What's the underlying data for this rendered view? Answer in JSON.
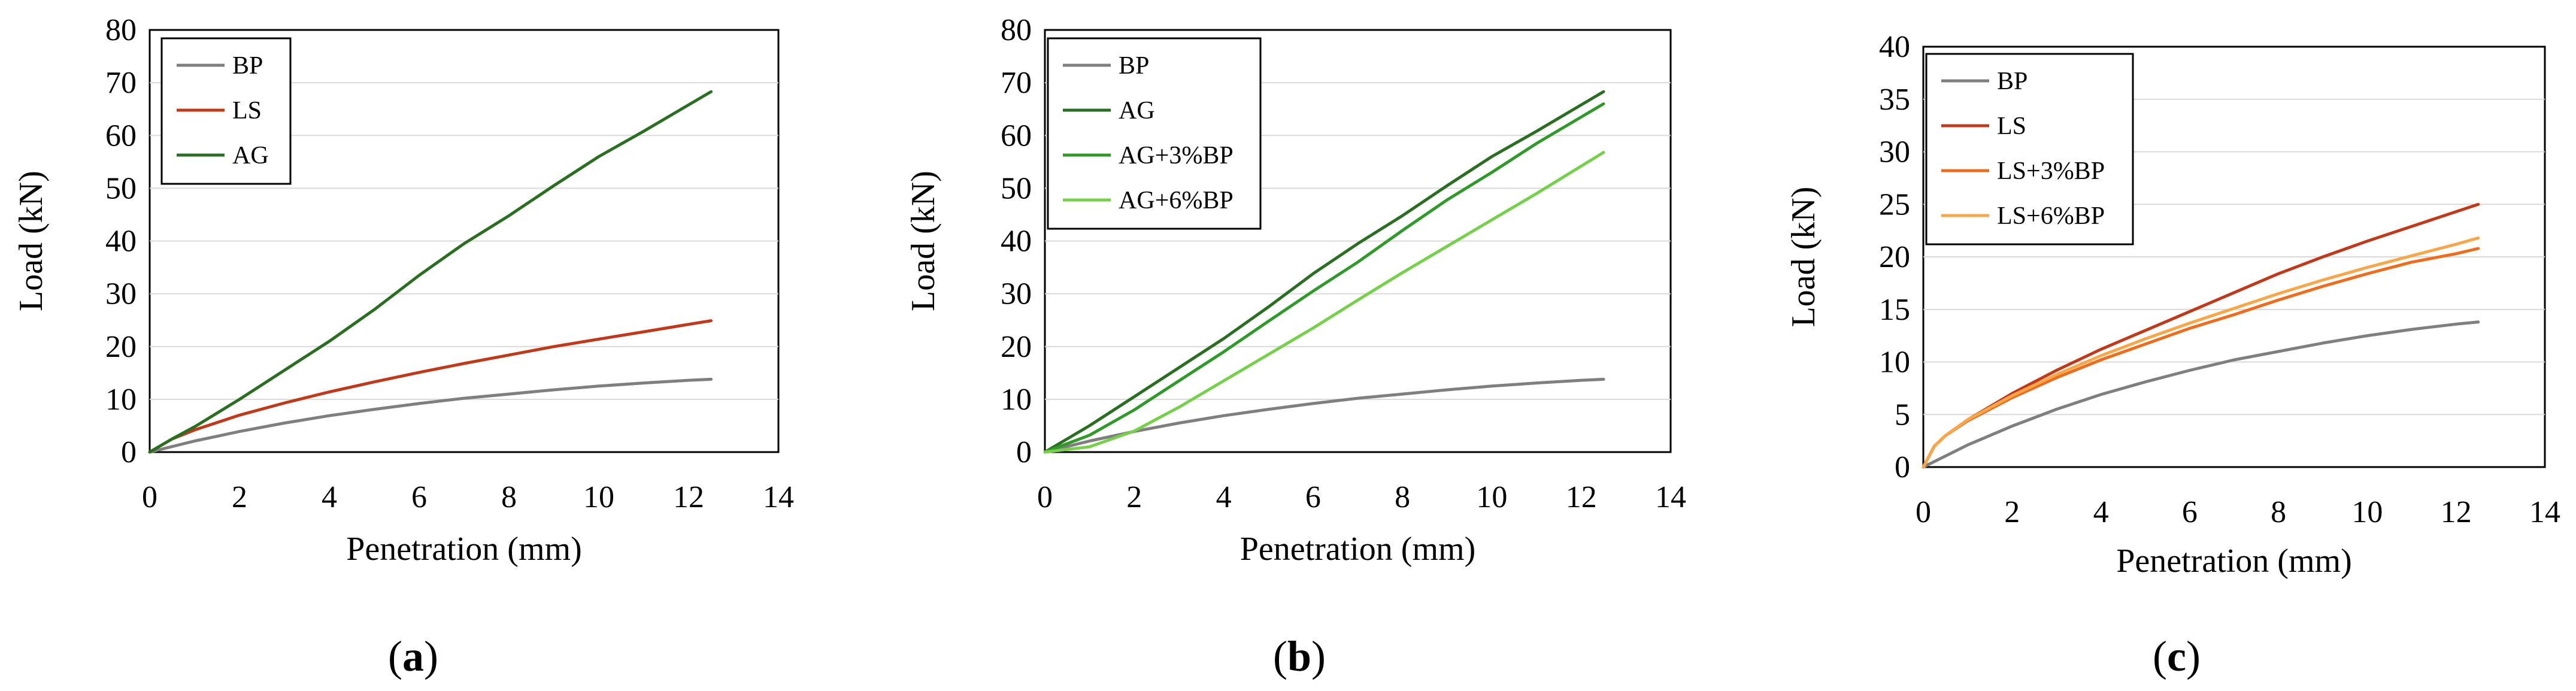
{
  "figure": {
    "colors": {
      "BP": "#7f7f7f",
      "LS": "#c0391b",
      "AG": "#2a6e21",
      "AG+3%BP": "#2f9a2a",
      "AG+6%BP": "#76d04b",
      "LS+3%BP": "#ee6c1c",
      "LS+6%BP": "#f7a74a",
      "grid": "#d9d9d9",
      "axis": "#000000"
    }
  },
  "chart_data": [
    {
      "id": "a",
      "type": "line",
      "caption": "a",
      "xlabel": "Penetration (mm)",
      "ylabel": "Load (kN)",
      "xlim": [
        0,
        14
      ],
      "ylim": [
        0,
        80
      ],
      "xticks": [
        "0",
        "2",
        "4",
        "6",
        "8",
        "10",
        "12",
        "14"
      ],
      "yticks": [
        "0",
        "10",
        "20",
        "30",
        "40",
        "50",
        "60",
        "70",
        "80"
      ],
      "grid": "horizontal",
      "legend_position": "top-left",
      "series": [
        {
          "name": "BP",
          "x": [
            0,
            1,
            2,
            3,
            4,
            5,
            6,
            7,
            8,
            9,
            10,
            11,
            12,
            12.5
          ],
          "y": [
            0,
            2.1,
            3.9,
            5.5,
            6.9,
            8.1,
            9.2,
            10.2,
            11.0,
            11.8,
            12.5,
            13.1,
            13.6,
            13.8
          ]
        },
        {
          "name": "LS",
          "x": [
            0,
            0.5,
            1,
            2,
            3,
            4,
            5,
            6,
            7,
            8,
            9,
            10,
            11,
            12,
            12.5
          ],
          "y": [
            0,
            2.5,
            4.2,
            7.0,
            9.3,
            11.4,
            13.3,
            15.1,
            16.8,
            18.4,
            20.0,
            21.4,
            22.8,
            24.2,
            24.9
          ]
        },
        {
          "name": "AG",
          "x": [
            0,
            0.5,
            1,
            2,
            3,
            4,
            5,
            6,
            7,
            8,
            9,
            10,
            11,
            12,
            12.5
          ],
          "y": [
            0,
            2.5,
            4.8,
            10.0,
            15.5,
            21.0,
            27.0,
            33.5,
            39.5,
            44.8,
            50.5,
            56.0,
            60.8,
            65.8,
            68.3
          ]
        }
      ]
    },
    {
      "id": "b",
      "type": "line",
      "caption": "b",
      "xlabel": "Penetration (mm)",
      "ylabel": "Load (kN)",
      "xlim": [
        0,
        14
      ],
      "ylim": [
        0,
        80
      ],
      "xticks": [
        "0",
        "2",
        "4",
        "6",
        "8",
        "10",
        "12",
        "14"
      ],
      "yticks": [
        "0",
        "10",
        "20",
        "30",
        "40",
        "50",
        "60",
        "70",
        "80"
      ],
      "grid": "horizontal",
      "legend_position": "top-left",
      "series": [
        {
          "name": "BP",
          "x": [
            0,
            1,
            2,
            3,
            4,
            5,
            6,
            7,
            8,
            9,
            10,
            11,
            12,
            12.5
          ],
          "y": [
            0,
            2.1,
            3.9,
            5.5,
            6.9,
            8.1,
            9.2,
            10.2,
            11.0,
            11.8,
            12.5,
            13.1,
            13.6,
            13.8
          ]
        },
        {
          "name": "AG",
          "x": [
            0,
            1,
            2,
            3,
            4,
            5,
            6,
            7,
            8,
            9,
            10,
            11,
            12,
            12.5
          ],
          "y": [
            0,
            5.0,
            10.5,
            16.0,
            21.5,
            27.5,
            33.8,
            39.5,
            44.8,
            50.5,
            56.0,
            60.8,
            65.8,
            68.3
          ]
        },
        {
          "name": "AG+3%BP",
          "x": [
            0,
            1,
            2,
            3,
            4,
            5,
            6,
            7,
            8,
            9,
            10,
            11,
            12,
            12.5
          ],
          "y": [
            0,
            3.2,
            8.0,
            13.5,
            19.0,
            24.8,
            30.5,
            36.0,
            42.0,
            47.8,
            53.0,
            58.5,
            63.5,
            66.0
          ]
        },
        {
          "name": "AG+6%BP",
          "x": [
            0,
            1,
            2,
            3,
            4,
            5,
            6,
            7,
            8,
            9,
            10,
            11,
            12,
            12.5
          ],
          "y": [
            0,
            1.0,
            4.0,
            8.5,
            13.5,
            18.5,
            23.5,
            28.8,
            34.0,
            39.0,
            44.0,
            49.0,
            54.2,
            56.8
          ]
        }
      ]
    },
    {
      "id": "c",
      "type": "line",
      "caption": "c",
      "xlabel": "Penetration (mm)",
      "ylabel": "Load (kN)",
      "xlim": [
        0,
        14
      ],
      "ylim": [
        0,
        40
      ],
      "xticks": [
        "0",
        "2",
        "4",
        "6",
        "8",
        "10",
        "12",
        "14"
      ],
      "yticks": [
        "0",
        "5",
        "10",
        "15",
        "20",
        "25",
        "30",
        "35",
        "40"
      ],
      "grid": "horizontal",
      "legend_position": "top-left",
      "series": [
        {
          "name": "BP",
          "x": [
            0,
            1,
            2,
            3,
            4,
            5,
            6,
            7,
            8,
            9,
            10,
            11,
            12,
            12.5
          ],
          "y": [
            0,
            2.1,
            3.9,
            5.5,
            6.9,
            8.1,
            9.2,
            10.2,
            11.0,
            11.8,
            12.5,
            13.1,
            13.6,
            13.8
          ]
        },
        {
          "name": "LS",
          "x": [
            0,
            0.25,
            0.5,
            1,
            2,
            3,
            4,
            5,
            6,
            7,
            8,
            9,
            10,
            11,
            12,
            12.5
          ],
          "y": [
            0,
            2.0,
            3.0,
            4.5,
            7.0,
            9.2,
            11.2,
            13.0,
            14.8,
            16.6,
            18.4,
            20.0,
            21.5,
            22.9,
            24.3,
            25.0
          ]
        },
        {
          "name": "LS+3%BP",
          "x": [
            0,
            0.25,
            0.5,
            1,
            2,
            3,
            4,
            5,
            6,
            7,
            8,
            9,
            10,
            11,
            12,
            12.5
          ],
          "y": [
            0,
            2.0,
            3.0,
            4.4,
            6.6,
            8.5,
            10.2,
            11.7,
            13.2,
            14.5,
            15.9,
            17.2,
            18.4,
            19.5,
            20.3,
            20.8
          ]
        },
        {
          "name": "LS+6%BP",
          "x": [
            0,
            0.25,
            0.5,
            1,
            2,
            3,
            4,
            5,
            6,
            7,
            8,
            9,
            10,
            11,
            12,
            12.5
          ],
          "y": [
            0,
            2.0,
            3.0,
            4.5,
            6.8,
            8.8,
            10.6,
            12.2,
            13.7,
            15.1,
            16.5,
            17.8,
            19.0,
            20.1,
            21.2,
            21.8
          ]
        }
      ]
    }
  ]
}
